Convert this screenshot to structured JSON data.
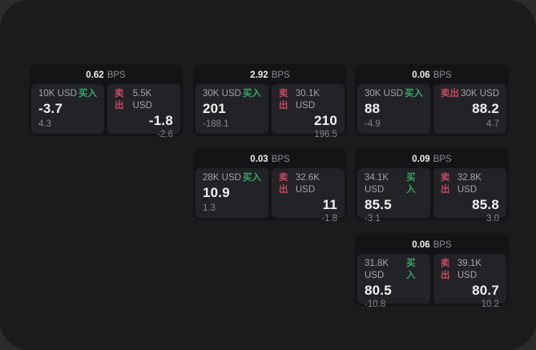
{
  "labels": {
    "bps_unit": "BPS",
    "buy": "买入",
    "sell": "卖出"
  },
  "colors": {
    "buy_green": "#3aa966",
    "sell_red": "#c44960",
    "window_bg": "#1b1b1d",
    "card_bg": "#141416",
    "panel_bg": "#232327",
    "backdrop": "#2b2b2d"
  },
  "cards": [
    {
      "bps": "0.62",
      "buy": {
        "amount": "10K USD",
        "price": "-3.7",
        "sub": "4.3"
      },
      "sell": {
        "amount": "5.5K USD",
        "price": "-1.8",
        "sub": "-2.6"
      }
    },
    {
      "bps": "2.92",
      "buy": {
        "amount": "30K USD",
        "price": "201",
        "sub": "-188.1"
      },
      "sell": {
        "amount": "30.1K USD",
        "price": "210",
        "sub": "196.5"
      }
    },
    {
      "bps": "0.06",
      "buy": {
        "amount": "30K USD",
        "price": "88",
        "sub": "-4.9"
      },
      "sell": {
        "amount": "30K USD",
        "price": "88.2",
        "sub": "4.7"
      }
    },
    {
      "bps": "0.03",
      "buy": {
        "amount": "28K USD",
        "price": "10.9",
        "sub": "1.3"
      },
      "sell": {
        "amount": "32.6K USD",
        "price": "11",
        "sub": "-1.8"
      }
    },
    {
      "bps": "0.09",
      "buy": {
        "amount": "34.1K USD",
        "price": "85.5",
        "sub": "-3.1"
      },
      "sell": {
        "amount": "32.8K USD",
        "price": "85.8",
        "sub": "3.0"
      }
    },
    {
      "bps": "0.06",
      "buy": {
        "amount": "31.8K USD",
        "price": "80.5",
        "sub": "-10.8"
      },
      "sell": {
        "amount": "39.1K USD",
        "price": "80.7",
        "sub": "10.2"
      }
    }
  ]
}
